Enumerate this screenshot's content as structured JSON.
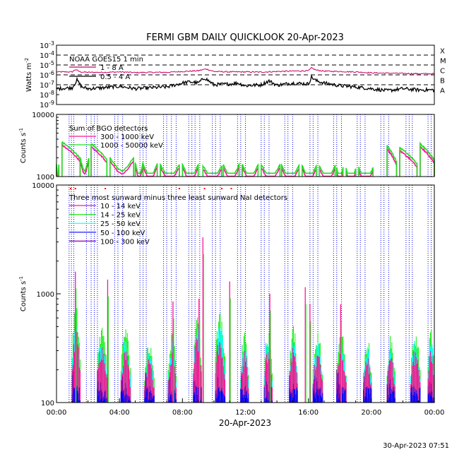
{
  "title": "FERMI GBM DAILY QUICKLOOK  20-Apr-2023",
  "footer": "30-Apr-2023 07:51",
  "colors": {
    "background": "#ffffff",
    "axis": "#000000",
    "goes_long": "#cc0066",
    "goes_short": "#000000",
    "bgo_low": "#ff1493",
    "bgo_high": "#22dd22",
    "nai_10_14": "#ff1493",
    "nai_14_25": "#22ee22",
    "nai_25_50": "#00ffff",
    "nai_50_100": "#0000ff",
    "nai_100_300": "#8800aa",
    "orbit_lines": "#0000ff",
    "saa_marks": "#ff0000"
  },
  "chart_data": [
    {
      "type": "line",
      "panel": "goes",
      "ylabel": "Watts m^-2",
      "yscale": "log",
      "ylim": [
        1e-09,
        0.001
      ],
      "ytick_labels": [
        "10^-3",
        "10^-4",
        "10^-5",
        "10^-6",
        "10^-7",
        "10^-8",
        "10^-9"
      ],
      "flare_classes": [
        "X",
        "M",
        "C",
        "B",
        "A"
      ],
      "legend_title": "NOAA GOES15 1 min",
      "series": [
        {
          "name": "1 - 8 A",
          "x": [
            0,
            1,
            1.2,
            1.5,
            2,
            3,
            4,
            5,
            6,
            7,
            8,
            9,
            9.5,
            10,
            11,
            12,
            13,
            14,
            15,
            16,
            16.2,
            16.5,
            17,
            18,
            19,
            20,
            21,
            22,
            23,
            24
          ],
          "values": [
            2e-06,
            2e-06,
            3.5e-06,
            2e-06,
            1.8e-06,
            1.8e-06,
            2e-06,
            1.7e-06,
            1.8e-06,
            1.8e-06,
            2.2e-06,
            2.6e-06,
            4e-06,
            2.2e-06,
            2e-06,
            2e-06,
            1.9e-06,
            2.2e-06,
            2.4e-06,
            2.6e-06,
            5e-06,
            3e-06,
            2.4e-06,
            2.2e-06,
            2e-06,
            1.6e-06,
            1.5e-06,
            1.4e-06,
            1.3e-06,
            1.3e-06
          ]
        },
        {
          "name": "0.5 - 4 A",
          "x": [
            0,
            1,
            1.3,
            1.6,
            2,
            3,
            4,
            5,
            6,
            7,
            8,
            8.5,
            9,
            9.4,
            10,
            11,
            11.5,
            12,
            13,
            13.5,
            14,
            15,
            16,
            16.2,
            16.5,
            17,
            18,
            19,
            20,
            21,
            22,
            23,
            24
          ],
          "values": [
            4e-08,
            5e-08,
            3e-07,
            6e-08,
            4e-08,
            5e-08,
            7e-08,
            4e-08,
            5e-08,
            6e-08,
            1.5e-07,
            2e-07,
            1.5e-07,
            5e-07,
            1e-07,
            1.2e-07,
            1.5e-07,
            8e-08,
            1e-07,
            2.5e-07,
            9e-08,
            1.5e-07,
            1.2e-07,
            6e-07,
            2.5e-07,
            1.5e-07,
            8e-08,
            6e-08,
            4e-08,
            2.5e-08,
            4e-08,
            3e-08,
            3e-08
          ]
        }
      ]
    },
    {
      "type": "line",
      "panel": "bgo",
      "ylabel": "Counts s^-1",
      "yscale": "log",
      "ylim": [
        1000,
        10000
      ],
      "ytick_labels": [
        "10000",
        "1000"
      ],
      "legend_title": "Sum of BGO detectors",
      "series": [
        {
          "name": "300 - 1000 keV"
        },
        {
          "name": "1000 - 50000 keV"
        }
      ],
      "passes": [
        {
          "start": 0.0,
          "end": 0.15,
          "peak": 1400
        },
        {
          "start": 0.35,
          "end": 1.5,
          "peak": 3200
        },
        {
          "start": 1.5,
          "end": 2.05,
          "peak": 1800
        },
        {
          "start": 2.2,
          "end": 3.2,
          "peak": 3000
        },
        {
          "start": 3.4,
          "end": 4.9,
          "peak": 1800
        },
        {
          "start": 5.0,
          "end": 5.5,
          "peak": 1500
        },
        {
          "start": 5.5,
          "end": 6.4,
          "peak": 1450
        },
        {
          "start": 6.6,
          "end": 7.8,
          "peak": 1400
        },
        {
          "start": 8.0,
          "end": 9.0,
          "peak": 1400
        },
        {
          "start": 9.3,
          "end": 10.5,
          "peak": 1350
        },
        {
          "start": 10.6,
          "end": 11.6,
          "peak": 1400
        },
        {
          "start": 11.8,
          "end": 12.8,
          "peak": 1400
        },
        {
          "start": 13.0,
          "end": 14.2,
          "peak": 1400
        },
        {
          "start": 14.3,
          "end": 15.4,
          "peak": 1350
        },
        {
          "start": 15.6,
          "end": 16.5,
          "peak": 1350
        },
        {
          "start": 16.7,
          "end": 17.7,
          "peak": 1350
        },
        {
          "start": 17.8,
          "end": 18.2,
          "peak": 1250
        },
        {
          "start": 18.4,
          "end": 19.0,
          "peak": 1200
        },
        {
          "start": 19.2,
          "end": 20.1,
          "peak": 1250
        },
        {
          "start": 21.0,
          "end": 21.6,
          "peak": 2800
        },
        {
          "start": 21.8,
          "end": 22.9,
          "peak": 2600
        },
        {
          "start": 23.1,
          "end": 24.0,
          "peak": 3000
        }
      ]
    },
    {
      "type": "area",
      "panel": "nai",
      "ylabel": "Counts s^-1",
      "yscale": "log",
      "ylim": [
        100,
        10000
      ],
      "ytick_labels": [
        "10000",
        "1000",
        "100"
      ],
      "xlabel": "20-Apr-2023",
      "xlim": [
        0,
        24
      ],
      "xtick_labels": [
        "00:00",
        "04:00",
        "08:00",
        "12:00",
        "16:00",
        "20:00",
        "00:00"
      ],
      "legend_title": "Three most sunward minus three least sunward NaI detectors",
      "series": [
        {
          "name": "10 - 14 keV"
        },
        {
          "name": "14 - 25 keV"
        },
        {
          "name": "25 - 50 keV"
        },
        {
          "name": "50 - 100 keV"
        },
        {
          "name": "100 - 300 keV"
        }
      ],
      "day_segments": [
        {
          "start": 1.0,
          "end": 1.5,
          "green_peak": 700
        },
        {
          "start": 2.6,
          "end": 3.2,
          "green_peak": 500
        },
        {
          "start": 4.1,
          "end": 4.7,
          "green_peak": 440
        },
        {
          "start": 5.6,
          "end": 6.2,
          "green_peak": 340
        },
        {
          "start": 7.1,
          "end": 7.6,
          "green_peak": 420
        },
        {
          "start": 8.7,
          "end": 9.2,
          "green_peak": 600
        },
        {
          "start": 10.1,
          "end": 10.7,
          "green_peak": 600
        },
        {
          "start": 11.7,
          "end": 12.2,
          "green_peak": 420
        },
        {
          "start": 13.2,
          "end": 13.7,
          "green_peak": 420
        },
        {
          "start": 14.8,
          "end": 15.3,
          "green_peak": 460
        },
        {
          "start": 16.3,
          "end": 16.9,
          "green_peak": 420
        },
        {
          "start": 17.8,
          "end": 18.4,
          "green_peak": 420
        },
        {
          "start": 19.5,
          "end": 20.0,
          "green_peak": 380
        },
        {
          "start": 21.0,
          "end": 21.5,
          "green_peak": 380
        },
        {
          "start": 22.5,
          "end": 23.1,
          "green_peak": 440
        },
        {
          "start": 23.6,
          "end": 24.0,
          "green_peak": 460
        }
      ],
      "spikes": [
        {
          "x": 1.2,
          "peak": 1600
        },
        {
          "x": 3.25,
          "peak": 1350
        },
        {
          "x": 7.4,
          "peak": 850
        },
        {
          "x": 9.3,
          "peak": 3300
        },
        {
          "x": 9.05,
          "peak": 900
        },
        {
          "x": 11.0,
          "peak": 1300
        },
        {
          "x": 13.55,
          "peak": 1000
        },
        {
          "x": 15.8,
          "peak": 1150
        },
        {
          "x": 16.1,
          "peak": 800
        },
        {
          "x": 18.05,
          "peak": 800
        }
      ],
      "saa_markers_x": [
        0.9,
        1.2,
        3.1,
        7.8,
        9.4,
        10.5,
        11.1
      ]
    }
  ],
  "orbit_line_hours": [
    0.8,
    0.95,
    1.1,
    1.9,
    2.2,
    2.4,
    2.6,
    3.7,
    3.9,
    4.2,
    5.3,
    5.5,
    5.7,
    6.8,
    7.0,
    7.3,
    7.6,
    8.4,
    8.6,
    8.8,
    9.1,
    9.9,
    10.1,
    10.4,
    11.5,
    11.7,
    12.0,
    13.0,
    13.2,
    13.5,
    14.5,
    14.7,
    15.0,
    16.1,
    16.3,
    16.6,
    17.6,
    17.8,
    18.1,
    19.1,
    19.3,
    19.6,
    20.6,
    20.8,
    21.1,
    22.2,
    22.4,
    22.6,
    23.6,
    23.8
  ]
}
